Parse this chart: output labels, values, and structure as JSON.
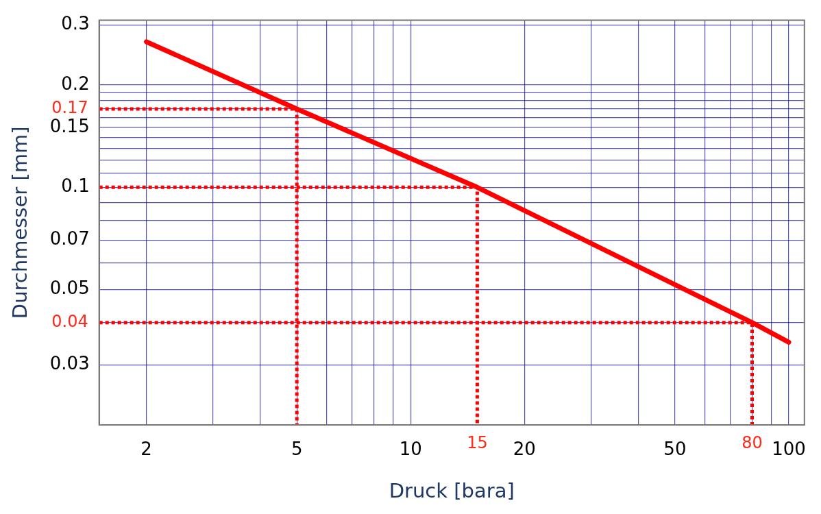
{
  "chart_data": {
    "type": "line",
    "xlabel": "Druck [bara]",
    "ylabel": "Durchmesser [mm]",
    "log": "xy",
    "grid": true,
    "legend": false,
    "marker": "none",
    "xlim": [
      1.5,
      110
    ],
    "ylim": [
      0.02,
      0.31
    ],
    "xticks": [
      2,
      {
        "value": 3,
        "label": null
      },
      {
        "value": 4,
        "label": null
      },
      5,
      {
        "value": 6,
        "label": null
      },
      {
        "value": 7,
        "label": null
      },
      {
        "value": 8,
        "label": null
      },
      {
        "value": 9,
        "label": null
      },
      10,
      20,
      {
        "value": 30,
        "label": null
      },
      {
        "value": 40,
        "label": null
      },
      50,
      {
        "value": 60,
        "label": null
      },
      {
        "value": 70,
        "label": null
      },
      {
        "value": 80,
        "label": null
      },
      {
        "value": 90,
        "label": null
      },
      100
    ],
    "yticks": [
      0.03,
      {
        "value": 0.04,
        "label": null
      },
      0.05,
      {
        "value": 0.06,
        "label": null
      },
      0.07,
      {
        "value": 0.08,
        "label": null
      },
      {
        "value": 0.09,
        "label": null
      },
      0.1,
      {
        "value": 0.11,
        "label": null
      },
      {
        "value": 0.12,
        "label": null
      },
      {
        "value": 0.13,
        "label": null
      },
      {
        "value": 0.14,
        "label": null
      },
      0.15,
      {
        "value": 0.16,
        "label": null
      },
      {
        "value": 0.17,
        "label": null
      },
      {
        "value": 0.18,
        "label": null
      },
      {
        "value": 0.19,
        "label": null
      },
      0.2,
      0.3
    ],
    "series": [
      {
        "type": "line",
        "color": "#ff0000",
        "line_style": "dotted",
        "x": [
          1.5,
          5,
          5
        ],
        "values": [
          0.17,
          0.17,
          0.02
        ]
      },
      {
        "type": "line",
        "color": "#ff0000",
        "line_style": "dotted",
        "x": [
          1.5,
          15,
          15
        ],
        "values": [
          0.1,
          0.1,
          0.02
        ]
      },
      {
        "type": "line",
        "color": "#ff0000",
        "line_style": "dotted",
        "x": [
          1.5,
          80,
          80
        ],
        "values": [
          0.04,
          0.04,
          0.02
        ]
      },
      {
        "type": "line",
        "color": "#ff0000",
        "line_style": "solid",
        "x": [
          2,
          5,
          15,
          80,
          100
        ],
        "values": [
          0.268,
          0.17,
          0.1,
          0.04,
          0.035
        ]
      }
    ],
    "annotations": [
      {
        "text": "0.17",
        "x": 1.5,
        "y": 0.17
      },
      {
        "text": "0.04",
        "x": 1.5,
        "y": 0.04
      },
      {
        "text": "15",
        "x": 15,
        "y": 0.02
      },
      {
        "text": "80",
        "x": 80,
        "y": 0.02
      }
    ]
  }
}
